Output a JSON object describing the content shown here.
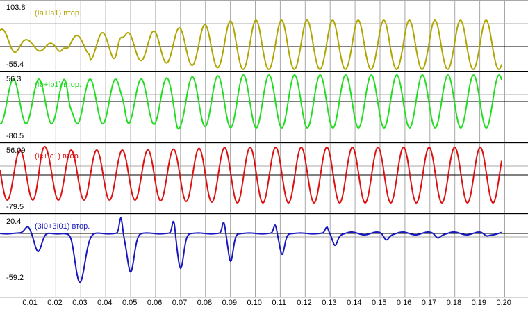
{
  "channels": [
    {
      "name": "(Ia+Ia1) втор.",
      "max": "103.8",
      "min": "-55.4",
      "color": "#b0a600"
    },
    {
      "name": "(Ib+Ib1) втор.",
      "max": "56.3",
      "min": "-80.5",
      "color": "#22dd22"
    },
    {
      "name": "(Ic+Ic1) втор.",
      "max": "56.09",
      "min": "-79.5",
      "color": "#dd1111"
    },
    {
      "name": "(3I0+3I01) втор.",
      "max": "20.4",
      "min": "-59.2",
      "color": "#1818c0"
    }
  ],
  "time_ticks": [
    "0.01",
    "0.02",
    "0.03",
    "0.04",
    "0.05",
    "0.06",
    "0.07",
    "0.08",
    "0.09",
    "0.10",
    "0.11",
    "0.12",
    "0.13",
    "0.14",
    "0.15",
    "0.16",
    "0.17",
    "0.18",
    "0.19",
    "0.20"
  ],
  "colors": {
    "grid": "#a8a8a8",
    "zero_line": "#000000",
    "background": "#ffffff"
  }
}
